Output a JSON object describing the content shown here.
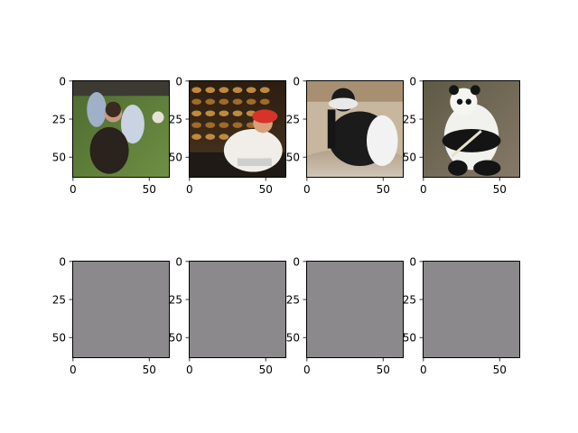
{
  "chart_data": {
    "type": "image-grid",
    "rows": 2,
    "cols": 4,
    "image_size": [
      64,
      64
    ],
    "axes": [
      {
        "row": 0,
        "col": 0,
        "content": "photo",
        "subject": "people sitting on grass",
        "palette": [
          "#5b7a3a",
          "#2a241e",
          "#9aa6b8",
          "#d9d2c4"
        ]
      },
      {
        "row": 0,
        "col": 1,
        "content": "photo",
        "subject": "person in red cap cooking at rotisserie",
        "palette": [
          "#3b2a18",
          "#8a5a22",
          "#f0ece6",
          "#d8332b"
        ]
      },
      {
        "row": 0,
        "col": 2,
        "content": "photo",
        "subject": "black-and-white colobus monkey",
        "palette": [
          "#b9a58a",
          "#1b1b1b",
          "#f2f2f2",
          "#cfc6b8"
        ]
      },
      {
        "row": 0,
        "col": 3,
        "content": "photo",
        "subject": "giant panda",
        "palette": [
          "#6c6a52",
          "#f1f1ee",
          "#141414",
          "#8c7e72"
        ]
      },
      {
        "row": 1,
        "col": 0,
        "content": "blank",
        "fill": "#8b898b"
      },
      {
        "row": 1,
        "col": 1,
        "content": "blank",
        "fill": "#8b898b"
      },
      {
        "row": 1,
        "col": 2,
        "content": "blank",
        "fill": "#8b898b"
      },
      {
        "row": 1,
        "col": 3,
        "content": "blank",
        "fill": "#8b898b"
      }
    ],
    "xticks": [
      0,
      50
    ],
    "yticks": [
      0,
      25,
      50
    ],
    "xlim": [
      -0.5,
      63.5
    ],
    "ylim": [
      63.5,
      -0.5
    ],
    "grid": false
  }
}
